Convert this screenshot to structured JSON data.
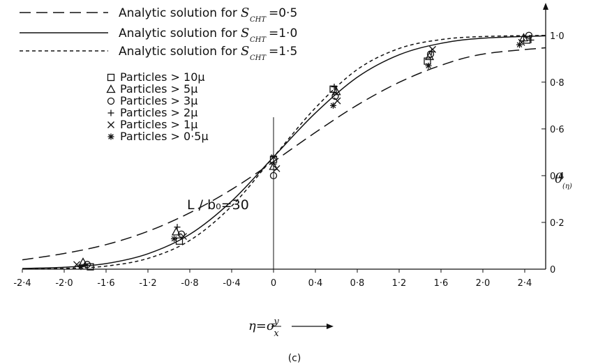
{
  "chart_data": {
    "type": "line",
    "xlabel_main": "η=σ",
    "xlabel_frac_num": "y",
    "xlabel_frac_den": "x",
    "ylabel_main": "θ",
    "ylabel_sub": "(η)",
    "xlim": [
      -2.4,
      2.6
    ],
    "ylim": [
      0,
      1.05
    ],
    "x_ticks": [
      -2.4,
      -2.0,
      -1.6,
      -1.2,
      -0.8,
      -0.4,
      0,
      0.4,
      0.8,
      1.2,
      1.6,
      2.0,
      2.4
    ],
    "x_tick_labels": [
      "-2·4",
      "-2·0",
      "-1·6",
      "-1·2",
      "-0·8",
      "-0·4",
      "0",
      "0·4",
      "0·8",
      "1·2",
      "1·6",
      "2·0",
      "2·4"
    ],
    "y_ticks": [
      0,
      0.2,
      0.4,
      0.6,
      0.8,
      1.0
    ],
    "y_tick_labels": [
      "0",
      "0·2",
      "0·4",
      "0·6",
      "0·8",
      "1·0"
    ],
    "annotation": "L / b₀=30",
    "caption": "(c)",
    "lines": [
      {
        "name": "Analytic solution for S_CHT = 0·5",
        "label": "Analytic solution for",
        "sym": "S",
        "sub": "CHT",
        "val": "=0·5",
        "dash": "16 8",
        "x": [
          -2.4,
          -2.0,
          -1.6,
          -1.2,
          -0.8,
          -0.4,
          0.0,
          0.4,
          0.8,
          1.2,
          1.6,
          2.0,
          2.6
        ],
        "y": [
          0.04,
          0.067,
          0.105,
          0.162,
          0.241,
          0.341,
          0.46,
          0.585,
          0.702,
          0.799,
          0.872,
          0.92,
          0.947
        ]
      },
      {
        "name": "Analytic solution for S_CHT = 1·0",
        "label": "Analytic solution for",
        "sym": "S",
        "sub": "CHT",
        "val": "=1·0",
        "dash": "",
        "x": [
          -2.4,
          -2.0,
          -1.6,
          -1.2,
          -0.8,
          -0.4,
          0.0,
          0.4,
          0.8,
          1.2,
          1.6,
          2.0,
          2.6
        ],
        "y": [
          0.003,
          0.008,
          0.024,
          0.066,
          0.149,
          0.291,
          0.48,
          0.668,
          0.821,
          0.917,
          0.966,
          0.988,
          0.998
        ]
      },
      {
        "name": "Analytic solution for S_CHT = 1·5",
        "label": "Analytic solution for",
        "sym": "S",
        "sub": "CHT",
        "val": "=1·5",
        "dash": "5 4",
        "x": [
          -2.4,
          -2.0,
          -1.6,
          -1.2,
          -0.8,
          -0.4,
          0.0,
          0.4,
          0.8,
          1.2,
          1.6,
          2.0,
          2.6
        ],
        "y": [
          0.001,
          0.003,
          0.013,
          0.046,
          0.123,
          0.27,
          0.48,
          0.69,
          0.854,
          0.944,
          0.982,
          0.995,
          1.0
        ]
      }
    ],
    "markers": [
      {
        "name": "Particles > 10μ",
        "shape": "square",
        "points": [
          [
            -1.75,
            0.01
          ],
          [
            -0.9,
            0.12
          ],
          [
            0.0,
            0.47
          ],
          [
            0.57,
            0.77
          ],
          [
            1.47,
            0.89
          ],
          [
            2.42,
            0.98
          ]
        ]
      },
      {
        "name": "Particles > 5μ",
        "shape": "triangle",
        "points": [
          [
            -1.82,
            0.03
          ],
          [
            -0.93,
            0.16
          ],
          [
            0.0,
            0.44
          ],
          [
            0.6,
            0.76
          ],
          [
            1.49,
            0.91
          ],
          [
            2.39,
            0.99
          ]
        ]
      },
      {
        "name": "Particles > 3μ",
        "shape": "circle",
        "points": [
          [
            -1.78,
            0.02
          ],
          [
            -0.88,
            0.15
          ],
          [
            0.0,
            0.4
          ],
          [
            0.59,
            0.74
          ],
          [
            1.5,
            0.92
          ],
          [
            2.44,
            1.0
          ]
        ]
      },
      {
        "name": "Particles > 2μ",
        "shape": "plus",
        "points": [
          [
            -1.8,
            0.02
          ],
          [
            -0.92,
            0.18
          ],
          [
            0.0,
            0.45
          ],
          [
            0.58,
            0.78
          ],
          [
            1.51,
            0.93
          ],
          [
            2.46,
            0.98
          ]
        ]
      },
      {
        "name": "Particles > 1μ",
        "shape": "cross",
        "points": [
          [
            -1.88,
            0.02
          ],
          [
            -0.86,
            0.14
          ],
          [
            0.03,
            0.43
          ],
          [
            0.61,
            0.72
          ],
          [
            1.52,
            0.94
          ],
          [
            2.37,
            0.97
          ]
        ]
      },
      {
        "name": "Particles > 0·5μ",
        "shape": "asterisk",
        "points": [
          [
            -1.84,
            0.01
          ],
          [
            -0.95,
            0.13
          ],
          [
            0.0,
            0.48
          ],
          [
            0.57,
            0.7
          ],
          [
            1.48,
            0.87
          ],
          [
            2.35,
            0.96
          ]
        ]
      }
    ],
    "marker_legend": [
      {
        "shape": "square",
        "text": "Particles > 10μ"
      },
      {
        "shape": "triangle",
        "text": "Particles > 5μ"
      },
      {
        "shape": "circle",
        "text": "Particles > 3μ"
      },
      {
        "shape": "plus",
        "text": "Particles > 2μ"
      },
      {
        "shape": "cross",
        "text": "Particles > 1μ"
      },
      {
        "shape": "asterisk",
        "text": "Particles > 0·5μ"
      }
    ],
    "grid": false,
    "legend_position": "top-left"
  }
}
